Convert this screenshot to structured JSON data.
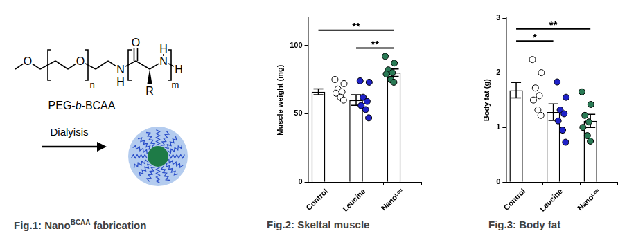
{
  "diagram": {
    "atoms": {
      "o1": "O",
      "o2": "O",
      "n_sub": "n",
      "amide_n": "N",
      "amide_h": "H",
      "carbonyl_o": "O",
      "r": "R",
      "amine_n": "N",
      "amine_h": "H",
      "end_h": "H",
      "m_sub": "m"
    },
    "name": {
      "prefix": "PEG-",
      "italic": "b",
      "suffix": "-BCAA"
    },
    "arrow_label": "Dialyisis",
    "caption": {
      "prefix": "Fig.1: Nano",
      "superscript": "BCAA",
      "suffix": " fabrication"
    }
  },
  "chart_data": [
    {
      "type": "bar",
      "title": "Fig.2:  Skeltal muscle",
      "y_label": "Muscle weight (mg)",
      "categories": [
        "Control",
        "Leucine",
        "Nanoᴸᵉᵘ"
      ],
      "values": [
        66,
        60,
        80
      ],
      "errors": [
        2.2,
        3.8,
        2.7
      ],
      "color": "#ffffff",
      "points": {
        "colors": [
          "#ffffff",
          "#1f22c8",
          "#2a7a55"
        ],
        "values": [
          [
            75,
            72,
            68,
            66,
            65,
            62,
            60
          ],
          [
            74,
            73,
            62,
            59,
            56,
            53,
            47
          ],
          [
            92,
            87,
            82,
            80,
            79,
            75,
            73
          ]
        ]
      },
      "annotations": [
        {
          "text": "**",
          "from": "Control",
          "to": "Nanoᴸᵉᵘ",
          "y": 111
        },
        {
          "text": "**",
          "from": "Leucine",
          "to": "Nanoᴸᵉᵘ",
          "y": 98
        }
      ],
      "ylim": [
        0,
        120
      ],
      "yticks": [
        0,
        50,
        100
      ],
      "grid": false
    },
    {
      "type": "bar",
      "title": "Fig.3: Body fat",
      "y_label": "Body fat (g)",
      "categories": [
        "Control",
        "Leucine",
        "Nanoᴸᵉᵘ"
      ],
      "values": [
        1.68,
        1.28,
        1.12
      ],
      "errors": [
        0.14,
        0.15,
        0.12
      ],
      "color": "#ffffff",
      "points": {
        "colors": [
          "#ffffff",
          "#1f22c8",
          "#2a7a55"
        ],
        "values": [
          [
            2.24,
            2.0,
            1.72,
            1.58,
            1.5,
            1.32,
            1.22
          ],
          [
            1.83,
            1.55,
            1.32,
            1.25,
            1.12,
            0.95,
            0.73
          ],
          [
            1.65,
            1.42,
            1.22,
            1.1,
            1.0,
            0.85,
            0.75
          ]
        ]
      },
      "annotations": [
        {
          "text": "**",
          "from": "Control",
          "to": "Nanoᴸᵉᵘ",
          "y": 2.8
        },
        {
          "text": "*",
          "from": "Control",
          "to": "Leucine",
          "y": 2.58
        }
      ],
      "ylim": [
        0,
        3
      ],
      "yticks": [
        0,
        1,
        2,
        3
      ],
      "grid": false
    }
  ]
}
